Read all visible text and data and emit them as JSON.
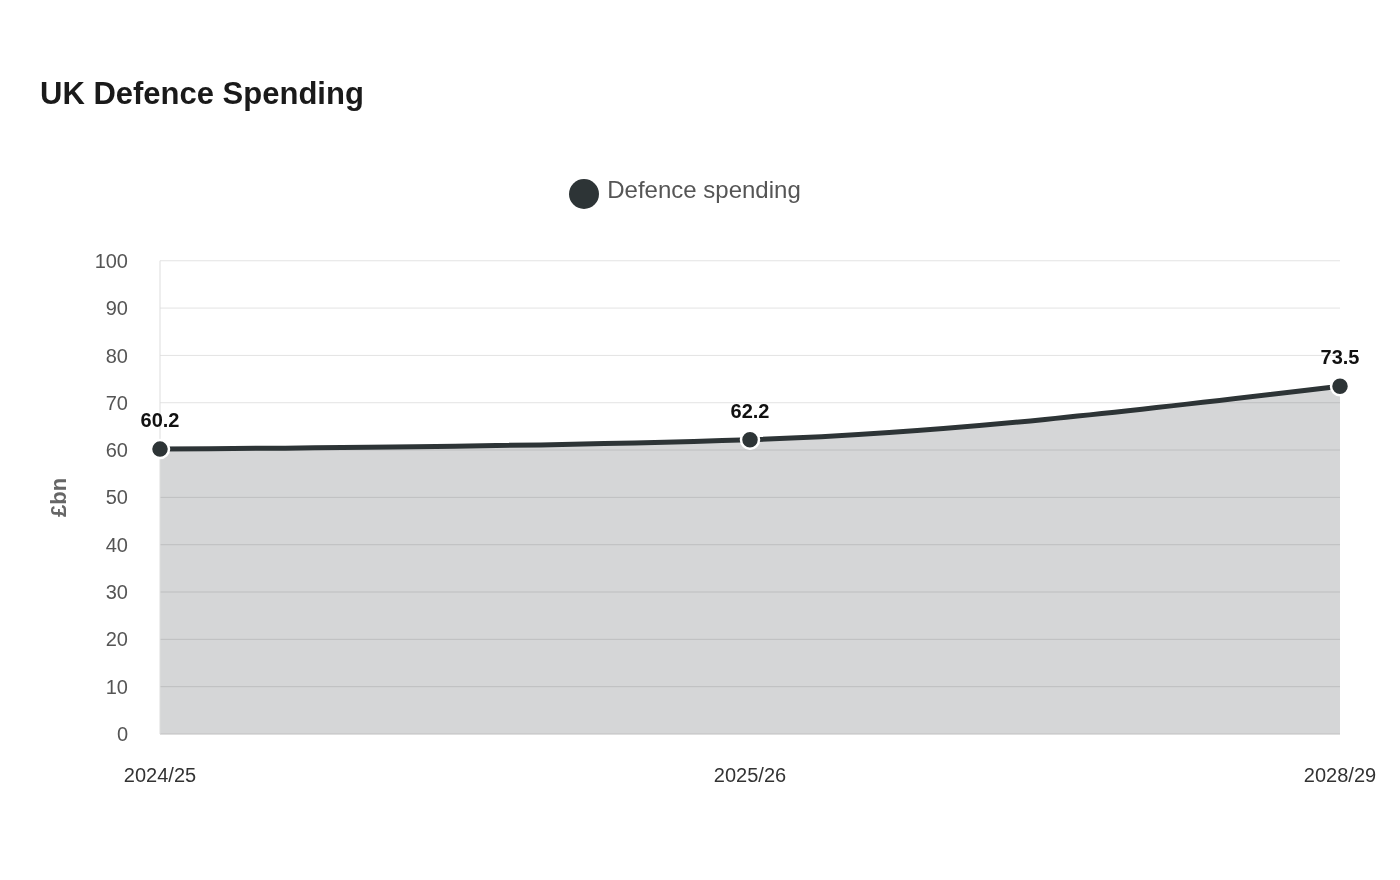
{
  "chart_data": {
    "type": "area",
    "title": "UK Defence Spending",
    "ylabel": "£bn",
    "categories": [
      "2024/25",
      "2025/26",
      "2028/29"
    ],
    "series": [
      {
        "name": "Defence spending",
        "color": "#2d3436",
        "values": [
          60.2,
          62.2,
          73.5
        ]
      }
    ],
    "ylim": [
      0,
      100
    ],
    "yticks": [
      0,
      10,
      20,
      30,
      40,
      50,
      60,
      70,
      80,
      90,
      100
    ],
    "grid": "y",
    "legend": "top",
    "marker": "circle",
    "data_labels": true
  }
}
